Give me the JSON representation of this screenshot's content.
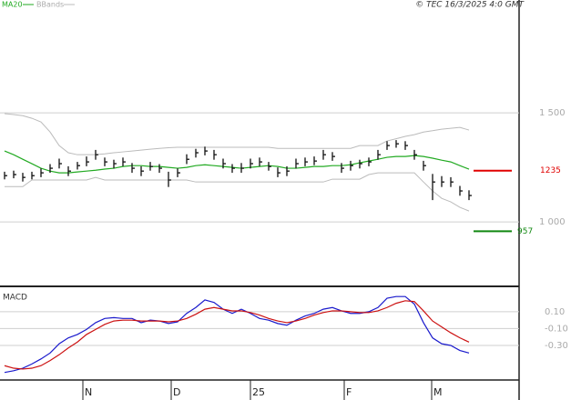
{
  "header": {
    "legend": [
      {
        "name": "MA20",
        "color": "#22aa22"
      },
      {
        "name": "BBands",
        "color": "#bbbbbb"
      }
    ],
    "copyright": "© TEC 16/3/2025 4:0 GMT"
  },
  "chart_data": [
    {
      "type": "hlc",
      "color": "#111111",
      "high": [
        1230,
        1235,
        1225,
        1230,
        1245,
        1265,
        1290,
        1255,
        1275,
        1300,
        1330,
        1295,
        1285,
        1295,
        1270,
        1255,
        1275,
        1265,
        1230,
        1245,
        1310,
        1335,
        1345,
        1330,
        1290,
        1265,
        1270,
        1290,
        1295,
        1275,
        1250,
        1255,
        1290,
        1295,
        1300,
        1330,
        1320,
        1270,
        1280,
        1285,
        1295,
        1330,
        1370,
        1375,
        1370,
        1330,
        1280,
        1220,
        1210,
        1205,
        1165,
        1145
      ],
      "low": [
        1195,
        1200,
        1185,
        1195,
        1205,
        1225,
        1245,
        1210,
        1240,
        1255,
        1285,
        1255,
        1245,
        1255,
        1225,
        1210,
        1235,
        1225,
        1160,
        1205,
        1265,
        1295,
        1305,
        1285,
        1245,
        1225,
        1225,
        1245,
        1255,
        1235,
        1205,
        1210,
        1245,
        1255,
        1260,
        1285,
        1280,
        1225,
        1235,
        1245,
        1255,
        1285,
        1330,
        1340,
        1330,
        1285,
        1235,
        1100,
        1160,
        1160,
        1120,
        1100
      ],
      "close": [
        1212,
        1217,
        1204,
        1212,
        1225,
        1246,
        1267,
        1233,
        1258,
        1275,
        1308,
        1275,
        1267,
        1275,
        1246,
        1233,
        1254,
        1246,
        1192,
        1225,
        1287,
        1317,
        1325,
        1308,
        1267,
        1246,
        1246,
        1267,
        1275,
        1254,
        1225,
        1233,
        1267,
        1275,
        1279,
        1308,
        1300,
        1246,
        1258,
        1267,
        1275,
        1308,
        1350,
        1358,
        1350,
        1308,
        1258,
        1183,
        1183,
        1183,
        1142,
        1121
      ],
      "ma": [
        1325,
        1308,
        1287,
        1267,
        1246,
        1233,
        1225,
        1225,
        1229,
        1233,
        1237,
        1242,
        1246,
        1254,
        1258,
        1258,
        1254,
        1254,
        1250,
        1246,
        1250,
        1258,
        1262,
        1258,
        1254,
        1250,
        1246,
        1250,
        1254,
        1258,
        1254,
        1246,
        1246,
        1250,
        1254,
        1254,
        1258,
        1258,
        1262,
        1271,
        1279,
        1287,
        1296,
        1300,
        1300,
        1304,
        1300,
        1292,
        1283,
        1275,
        1258,
        1242
      ],
      "bb_upper": [
        1496,
        1492,
        1487,
        1475,
        1458,
        1412,
        1350,
        1317,
        1308,
        1308,
        1308,
        1312,
        1317,
        1321,
        1325,
        1329,
        1333,
        1337,
        1340,
        1342,
        1342,
        1342,
        1342,
        1342,
        1342,
        1342,
        1342,
        1342,
        1342,
        1342,
        1337,
        1337,
        1337,
        1337,
        1337,
        1337,
        1337,
        1337,
        1337,
        1350,
        1350,
        1350,
        1371,
        1381,
        1392,
        1400,
        1412,
        1418,
        1425,
        1429,
        1433,
        1421
      ],
      "bb_lower": [
        1162,
        1162,
        1162,
        1192,
        1192,
        1192,
        1192,
        1192,
        1192,
        1192,
        1204,
        1192,
        1192,
        1192,
        1192,
        1192,
        1192,
        1192,
        1192,
        1192,
        1192,
        1183,
        1183,
        1183,
        1183,
        1183,
        1183,
        1183,
        1183,
        1183,
        1183,
        1183,
        1183,
        1183,
        1183,
        1183,
        1196,
        1196,
        1196,
        1196,
        1217,
        1225,
        1225,
        1225,
        1225,
        1225,
        1183,
        1142,
        1108,
        1092,
        1067,
        1050
      ],
      "levels": [
        {
          "value": 1235,
          "color": "#e00000"
        },
        {
          "value": 957,
          "color": "#118811"
        }
      ],
      "xlim": [
        -0.5,
        56.5
      ],
      "ylim": [
        713,
        1967
      ],
      "yticks": [
        {
          "value": 1000,
          "label": "1 000"
        },
        {
          "value": 1500,
          "label": "1 500"
        }
      ],
      "grid": true
    },
    {
      "type": "line",
      "title": "MACD",
      "series": [
        {
          "name": "MACD",
          "color": "#1a1acc",
          "values": [
            -0.62,
            -0.6,
            -0.57,
            -0.52,
            -0.46,
            -0.39,
            -0.28,
            -0.21,
            -0.17,
            -0.11,
            -0.03,
            0.02,
            0.03,
            0.02,
            0.02,
            -0.03,
            0.0,
            -0.01,
            -0.04,
            -0.02,
            0.08,
            0.15,
            0.24,
            0.21,
            0.13,
            0.08,
            0.13,
            0.08,
            0.02,
            0.0,
            -0.04,
            -0.06,
            0.0,
            0.05,
            0.08,
            0.13,
            0.15,
            0.11,
            0.08,
            0.08,
            0.1,
            0.15,
            0.26,
            0.28,
            0.28,
            0.19,
            -0.03,
            -0.21,
            -0.28,
            -0.3,
            -0.36,
            -0.39
          ]
        },
        {
          "name": "Signal",
          "color": "#cc1111",
          "values": [
            -0.54,
            -0.57,
            -0.58,
            -0.57,
            -0.54,
            -0.48,
            -0.41,
            -0.33,
            -0.26,
            -0.17,
            -0.11,
            -0.05,
            -0.01,
            0.0,
            0.0,
            -0.01,
            -0.01,
            -0.01,
            -0.02,
            -0.01,
            0.02,
            0.07,
            0.13,
            0.15,
            0.13,
            0.11,
            0.11,
            0.09,
            0.06,
            0.02,
            -0.01,
            -0.03,
            -0.01,
            0.02,
            0.06,
            0.09,
            0.11,
            0.11,
            0.1,
            0.09,
            0.09,
            0.11,
            0.15,
            0.2,
            0.23,
            0.22,
            0.11,
            -0.01,
            -0.08,
            -0.15,
            -0.21,
            -0.26
          ]
        }
      ],
      "xlim": [
        -0.5,
        56.5
      ],
      "ylim": [
        -0.71,
        0.39
      ],
      "yticks": [
        {
          "value": 0.1,
          "label": "0.10"
        },
        {
          "value": -0.1,
          "label": "-0.10"
        },
        {
          "value": -0.3,
          "label": "-0.30"
        }
      ],
      "grid": true,
      "xticks": [
        {
          "value": 8.6,
          "label": "N"
        },
        {
          "value": 18.3,
          "label": "D"
        },
        {
          "value": 27,
          "label": "25"
        },
        {
          "value": 37.3,
          "label": "F"
        },
        {
          "value": 46.9,
          "label": "M"
        }
      ]
    }
  ]
}
